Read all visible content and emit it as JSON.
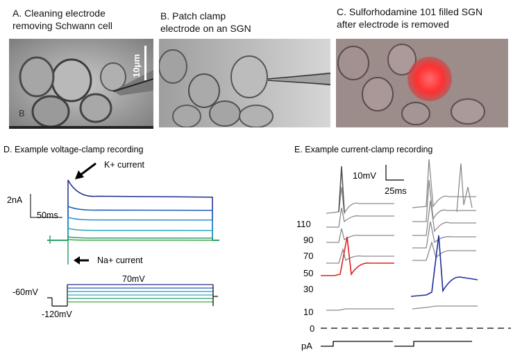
{
  "panels": {
    "a": {
      "title_line1": "A. Cleaning electrode",
      "title_line2": "removing Schwann cell",
      "scalebar": "10μm",
      "corner_mark": "B"
    },
    "b": {
      "title_line1": "B. Patch clamp",
      "title_line2": "electrode on an SGN"
    },
    "c": {
      "title_line1": "C. Sulforhodamine 101 filled SGN",
      "title_line2": "after electrode is removed"
    },
    "d": {
      "title": "D. Example voltage-clamp recording",
      "k_label": "K+ current",
      "na_label": "Na+ current",
      "scale_y": "2nA",
      "scale_x": "50ms",
      "hold": "-60mV",
      "hyper": "-120mV",
      "step_max": "70mV"
    },
    "e": {
      "title": "E. Example current-clamp recording",
      "scale_y": "10mV",
      "scale_x": "25ms",
      "currents": [
        "110",
        "90",
        "70",
        "50",
        "30",
        "10"
      ],
      "zero": "0",
      "unit": "pA"
    }
  },
  "colors": {
    "vc_traces": [
      "#1b2a8c",
      "#1f5fbf",
      "#2b8fd0",
      "#2aa6b6",
      "#2c9f6a",
      "#3aa845"
    ],
    "highlight_red": "#e0201e",
    "highlight_blue": "#1a2b9e",
    "trace_gray": "#8a8a8a",
    "fluor_red": "#ff4040"
  }
}
